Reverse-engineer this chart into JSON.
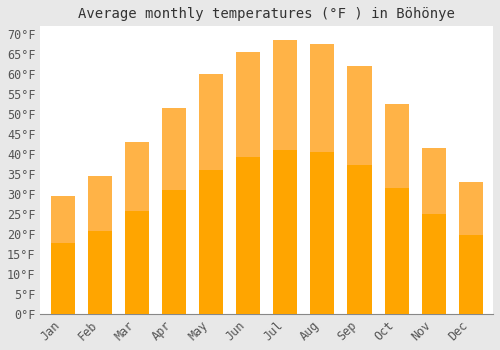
{
  "title": "Average monthly temperatures (°F ) in Böhönye",
  "months": [
    "Jan",
    "Feb",
    "Mar",
    "Apr",
    "May",
    "Jun",
    "Jul",
    "Aug",
    "Sep",
    "Oct",
    "Nov",
    "Dec"
  ],
  "values": [
    29.5,
    34.5,
    43.0,
    51.5,
    60.0,
    65.5,
    68.5,
    67.5,
    62.0,
    52.5,
    41.5,
    33.0
  ],
  "bar_color_top": "#FFB347",
  "bar_color_bottom": "#FFA500",
  "background_color": "#e8e8e8",
  "plot_bg_color": "#ffffff",
  "grid_color": "#ffffff",
  "ylim": [
    0,
    72
  ],
  "yticks": [
    0,
    5,
    10,
    15,
    20,
    25,
    30,
    35,
    40,
    45,
    50,
    55,
    60,
    65,
    70
  ],
  "title_fontsize": 10,
  "tick_fontsize": 8.5
}
